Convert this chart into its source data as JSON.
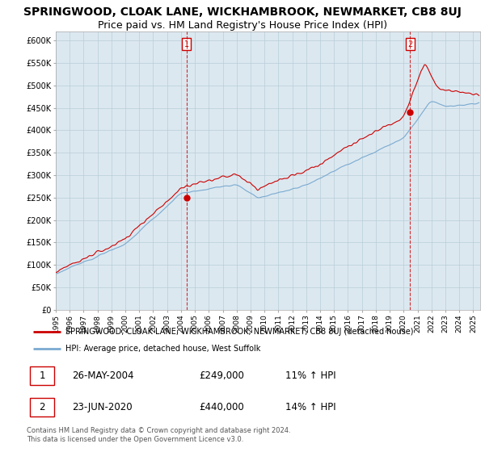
{
  "title": "SPRINGWOOD, CLOAK LANE, WICKHAMBROOK, NEWMARKET, CB8 8UJ",
  "subtitle": "Price paid vs. HM Land Registry's House Price Index (HPI)",
  "ylabel_ticks": [
    "£0",
    "£50K",
    "£100K",
    "£150K",
    "£200K",
    "£250K",
    "£300K",
    "£350K",
    "£400K",
    "£450K",
    "£500K",
    "£550K",
    "£600K"
  ],
  "ytick_values": [
    0,
    50000,
    100000,
    150000,
    200000,
    250000,
    300000,
    350000,
    400000,
    450000,
    500000,
    550000,
    600000
  ],
  "ylim": [
    0,
    620000
  ],
  "xlim_start": 1995.0,
  "xlim_end": 2025.5,
  "xtick_years": [
    1995,
    1996,
    1997,
    1998,
    1999,
    2000,
    2001,
    2002,
    2003,
    2004,
    2005,
    2006,
    2007,
    2008,
    2009,
    2010,
    2011,
    2012,
    2013,
    2014,
    2015,
    2016,
    2017,
    2018,
    2019,
    2020,
    2021,
    2022,
    2023,
    2024,
    2025
  ],
  "red_line_label": "SPRINGWOOD, CLOAK LANE, WICKHAMBROOK, NEWMARKET, CB8 8UJ (detached house)",
  "blue_line_label": "HPI: Average price, detached house, West Suffolk",
  "sale1_date": "26-MAY-2004",
  "sale1_price": "£249,000",
  "sale1_hpi": "11% ↑ HPI",
  "sale1_x": 2004.4,
  "sale1_y": 249000,
  "sale2_date": "23-JUN-2020",
  "sale2_price": "£440,000",
  "sale2_hpi": "14% ↑ HPI",
  "sale2_x": 2020.47,
  "sale2_y": 440000,
  "red_color": "#cc0000",
  "blue_color": "#7aaad0",
  "chart_bg_color": "#dce8f0",
  "background_color": "#ffffff",
  "grid_color": "#b8cdd8",
  "footer_text": "Contains HM Land Registry data © Crown copyright and database right 2024.\nThis data is licensed under the Open Government Licence v3.0.",
  "title_fontsize": 10,
  "subtitle_fontsize": 9
}
